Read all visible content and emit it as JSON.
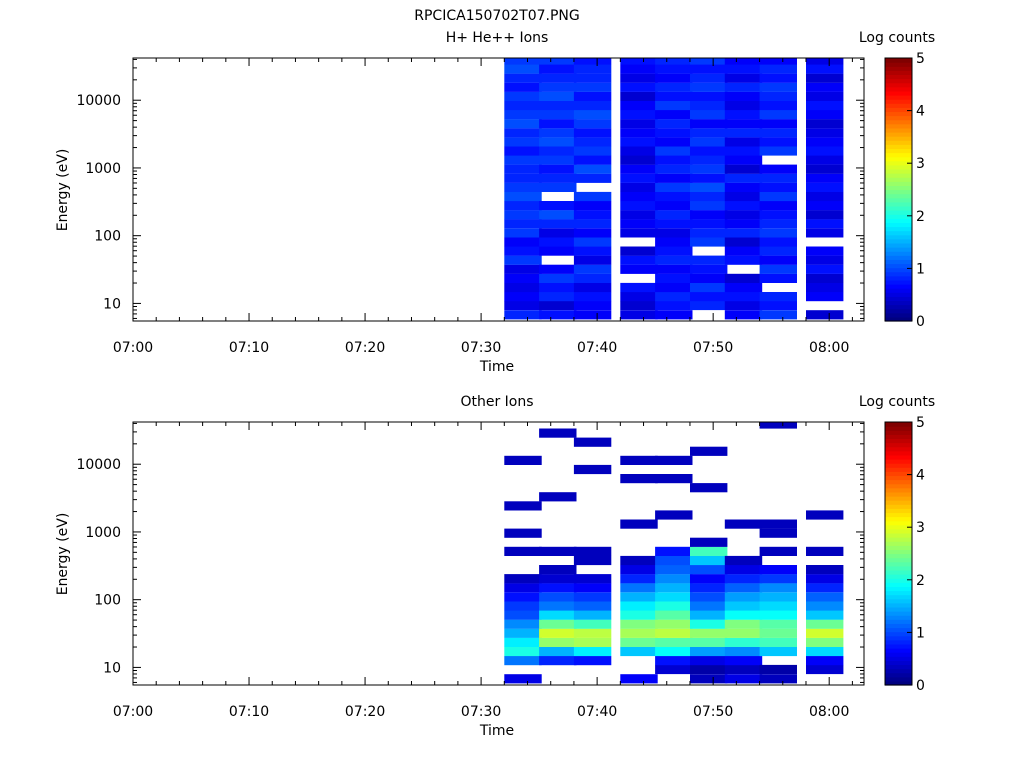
{
  "figure_title": "RPCICA150702T07.PNG",
  "chart_data": [
    {
      "type": "heatmap",
      "title": "H+ He++ Ions",
      "xlabel": "Time",
      "ylabel": "Energy (eV)",
      "y_scale": "log",
      "ylim": [
        5.5,
        42000
      ],
      "xlim": [
        "07:00",
        "08:03"
      ],
      "x_ticks": [
        "07:00",
        "07:10",
        "07:20",
        "07:30",
        "07:40",
        "07:50",
        "08:00"
      ],
      "y_ticks": [
        "10",
        "100",
        "1000",
        "10000"
      ],
      "colorbar": {
        "label": "Log counts",
        "ticks": [
          "0",
          "1",
          "2",
          "3",
          "4",
          "5"
        ],
        "range": [
          0,
          5
        ],
        "colormap": "jet"
      },
      "time_columns": [
        "07:32",
        "07:35",
        "07:38",
        "07:42",
        "07:45",
        "07:48",
        "07:51",
        "07:54",
        "07:58"
      ],
      "energy_bins": [
        6.8,
        9.3,
        12.6,
        17.2,
        23.4,
        31.9,
        43.5,
        59.2,
        80.7,
        110,
        150,
        204,
        278,
        379,
        516,
        703,
        958,
        1305,
        1778,
        2423,
        3301,
        4497,
        6128,
        8349,
        11375,
        15498,
        21115,
        28769,
        39196
      ],
      "values": [
        [
          0.8,
          0.5,
          0.6,
          0.5,
          0.6,
          0.5,
          0.9,
          0.7,
          0.6,
          0.9,
          0.8,
          0.9,
          0.8,
          1.0,
          0.9,
          0.8,
          0.8,
          0.9,
          0.7,
          0.9,
          0.8,
          1.0,
          0.9,
          0.8,
          0.9,
          0.7,
          0.8,
          1.0,
          0.9
        ],
        [
          0.7,
          0.4,
          0.8,
          0.7,
          0.9,
          0.6,
          0.0,
          0.6,
          0.7,
          0.5,
          0.8,
          1.0,
          0.7,
          0.0,
          0.9,
          0.8,
          0.7,
          0.9,
          0.8,
          1.0,
          0.9,
          0.7,
          0.9,
          0.8,
          1.0,
          0.9,
          0.8,
          0.7,
          0.9
        ],
        [
          0.6,
          0.6,
          0.7,
          0.5,
          0.8,
          0.9,
          0.5,
          0.7,
          0.9,
          0.6,
          0.8,
          0.7,
          0.6,
          0.9,
          0.0,
          0.8,
          1.0,
          0.7,
          0.9,
          0.8,
          0.7,
          0.9,
          1.0,
          0.8,
          0.7,
          0.9,
          0.8,
          0.8,
          0.7
        ],
        [
          0.5,
          0.4,
          0.5,
          0.7,
          0.0,
          0.6,
          0.7,
          0.4,
          0.0,
          0.5,
          0.6,
          0.5,
          0.7,
          0.6,
          0.5,
          0.7,
          0.6,
          0.4,
          0.5,
          0.7,
          0.6,
          0.5,
          0.7,
          0.6,
          0.4,
          0.7,
          0.5,
          0.6,
          0.7
        ],
        [
          0.6,
          0.7,
          0.8,
          0.6,
          0.7,
          0.6,
          0.8,
          0.7,
          0.6,
          0.5,
          0.7,
          0.8,
          0.6,
          0.7,
          0.9,
          0.6,
          0.8,
          0.7,
          0.9,
          0.6,
          0.7,
          0.8,
          0.6,
          0.9,
          0.7,
          0.8,
          0.6,
          0.7,
          0.8
        ],
        [
          0.0,
          0.8,
          0.7,
          0.9,
          0.6,
          0.7,
          0.8,
          0.0,
          0.9,
          0.8,
          0.7,
          0.6,
          0.9,
          0.8,
          1.0,
          0.7,
          0.9,
          0.8,
          0.7,
          0.9,
          0.8,
          0.6,
          0.9,
          0.8,
          0.7,
          0.9,
          0.8,
          0.7,
          0.9
        ],
        [
          0.6,
          0.5,
          0.7,
          0.6,
          0.4,
          0.0,
          0.7,
          0.6,
          0.4,
          0.8,
          0.6,
          0.5,
          0.7,
          0.5,
          0.6,
          0.8,
          0.4,
          0.6,
          0.7,
          0.5,
          0.8,
          0.6,
          0.7,
          0.5,
          0.6,
          0.8,
          0.5,
          0.7,
          0.6
        ],
        [
          0.9,
          0.7,
          0.8,
          0.0,
          0.7,
          0.9,
          0.6,
          0.8,
          0.7,
          0.9,
          0.8,
          0.7,
          0.6,
          0.9,
          0.7,
          0.8,
          0.6,
          0.0,
          0.9,
          0.7,
          0.8,
          0.6,
          0.9,
          0.7,
          0.8,
          0.9,
          0.7,
          0.8,
          0.6
        ],
        [
          0.4,
          0.0,
          0.6,
          0.5,
          0.4,
          0.7,
          0.5,
          0.6,
          0.0,
          0.5,
          0.7,
          0.4,
          0.6,
          0.5,
          0.7,
          0.6,
          0.4,
          0.5,
          0.7,
          0.6,
          0.5,
          0.4,
          0.6,
          0.7,
          0.5,
          0.6,
          0.4,
          0.7,
          0.5
        ]
      ]
    },
    {
      "type": "heatmap",
      "title": "Other Ions",
      "xlabel": "Time",
      "ylabel": "Energy (eV)",
      "y_scale": "log",
      "ylim": [
        5.5,
        42000
      ],
      "xlim": [
        "07:00",
        "08:03"
      ],
      "x_ticks": [
        "07:00",
        "07:10",
        "07:20",
        "07:30",
        "07:40",
        "07:50",
        "08:00"
      ],
      "y_ticks": [
        "10",
        "100",
        "1000",
        "10000"
      ],
      "colorbar": {
        "label": "Log counts",
        "ticks": [
          "0",
          "1",
          "2",
          "3",
          "4",
          "5"
        ],
        "range": [
          0,
          5
        ],
        "colormap": "jet"
      },
      "time_columns": [
        "07:32",
        "07:35",
        "07:38",
        "07:42",
        "07:45",
        "07:48",
        "07:51",
        "07:54",
        "07:58"
      ],
      "energy_bins": [
        6.8,
        9.3,
        12.6,
        17.2,
        23.4,
        31.9,
        43.5,
        59.2,
        80.7,
        110,
        150,
        204,
        278,
        379,
        516,
        703,
        958,
        1305,
        1778,
        2423,
        3301,
        4497,
        6128,
        8349,
        11375,
        15498,
        21115,
        28769,
        39196
      ],
      "values": [
        [
          0.5,
          0.0,
          1.2,
          2.0,
          1.8,
          1.5,
          1.3,
          1.0,
          0.9,
          0.7,
          0.5,
          0.3,
          0.0,
          0.0,
          0.3,
          0.0,
          0.3,
          0.0,
          0.0,
          0.3,
          0.0,
          0.0,
          0.0,
          0.0,
          0.3,
          0.0,
          0.0,
          0.0,
          0.0
        ],
        [
          0.0,
          0.0,
          0.8,
          1.5,
          2.6,
          2.9,
          2.4,
          1.7,
          1.2,
          1.0,
          0.7,
          0.4,
          0.3,
          0.0,
          0.3,
          0.0,
          0.0,
          0.0,
          0.0,
          0.0,
          0.3,
          0.0,
          0.0,
          0.0,
          0.0,
          0.0,
          0.0,
          0.3,
          0.0
        ],
        [
          0.0,
          0.0,
          0.7,
          1.8,
          2.7,
          2.8,
          2.2,
          1.5,
          1.1,
          0.9,
          0.6,
          0.4,
          0.0,
          0.3,
          0.3,
          0.0,
          0.0,
          0.0,
          0.0,
          0.0,
          0.0,
          0.0,
          0.0,
          0.3,
          0.0,
          0.0,
          0.3,
          0.0,
          0.0
        ],
        [
          0.6,
          0.0,
          0.0,
          1.6,
          2.4,
          2.7,
          2.5,
          2.0,
          1.8,
          1.5,
          1.2,
          0.8,
          0.5,
          0.3,
          0.0,
          0.0,
          0.0,
          0.3,
          0.0,
          0.0,
          0.0,
          0.0,
          0.3,
          0.0,
          0.3,
          0.0,
          0.0,
          0.0,
          0.0
        ],
        [
          0.0,
          0.4,
          0.7,
          1.9,
          2.3,
          2.8,
          2.6,
          2.3,
          2.0,
          1.7,
          1.5,
          1.3,
          1.1,
          1.0,
          0.7,
          0.0,
          0.0,
          0.0,
          0.3,
          0.0,
          0.0,
          0.0,
          0.3,
          0.0,
          0.3,
          0.0,
          0.0,
          0.0,
          0.0
        ],
        [
          0.3,
          0.2,
          0.5,
          1.4,
          2.3,
          2.6,
          2.0,
          1.5,
          1.2,
          1.0,
          0.8,
          0.6,
          1.0,
          1.6,
          2.2,
          0.3,
          0.0,
          0.0,
          0.0,
          0.0,
          0.0,
          0.3,
          0.0,
          0.0,
          0.0,
          0.3,
          0.0,
          0.0,
          0.0
        ],
        [
          0.5,
          0.3,
          0.6,
          1.3,
          2.1,
          2.6,
          2.5,
          1.9,
          1.6,
          1.4,
          1.1,
          0.8,
          0.5,
          0.3,
          0.0,
          0.0,
          0.0,
          0.3,
          0.0,
          0.0,
          0.0,
          0.0,
          0.0,
          0.0,
          0.0,
          0.0,
          0.0,
          0.0,
          0.0
        ],
        [
          0.3,
          0.2,
          0.0,
          1.6,
          2.2,
          2.4,
          2.3,
          1.9,
          1.7,
          1.5,
          1.3,
          0.9,
          0.6,
          0.0,
          0.3,
          0.0,
          0.3,
          0.3,
          0.0,
          0.0,
          0.0,
          0.0,
          0.0,
          0.0,
          0.0,
          0.0,
          0.0,
          0.0,
          0.3
        ],
        [
          0.0,
          0.4,
          0.6,
          1.7,
          2.5,
          2.9,
          2.4,
          1.6,
          1.3,
          1.1,
          0.8,
          0.5,
          0.3,
          0.0,
          0.3,
          0.0,
          0.0,
          0.0,
          0.3,
          0.0,
          0.0,
          0.0,
          0.0,
          0.0,
          0.0,
          0.0,
          0.0,
          0.0,
          0.0
        ]
      ]
    }
  ]
}
